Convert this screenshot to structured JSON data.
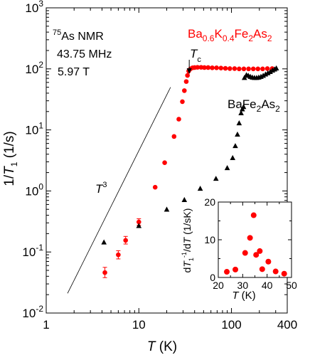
{
  "chart_data": [
    {
      "type": "scatter",
      "xscale": "log",
      "yscale": "log",
      "xlim": [
        1,
        400
      ],
      "ylim": [
        0.01,
        1000
      ],
      "xlabel": {
        "italic": "T",
        "rest": " (K)"
      },
      "ylabel": {
        "pre": "1/",
        "italic": "T",
        "sub": "1",
        "rest": " (1/s)"
      },
      "xticks": [
        {
          "v": 1,
          "label": "1"
        },
        {
          "v": 10,
          "label": "10"
        },
        {
          "v": 100,
          "label": "100"
        },
        {
          "v": 400,
          "label": "400"
        }
      ],
      "yticks": [
        {
          "v": 0.01,
          "base": "10",
          "exp": "-2"
        },
        {
          "v": 0.1,
          "base": "10",
          "exp": "-1"
        },
        {
          "v": 1,
          "base": "10",
          "exp": "0"
        },
        {
          "v": 10,
          "base": "10",
          "exp": "1"
        },
        {
          "v": 100,
          "base": "10",
          "exp": "2"
        },
        {
          "v": 1000,
          "base": "10",
          "exp": "3"
        }
      ],
      "info": {
        "nucleus_sup": "75",
        "nucleus_rest": "As NMR",
        "frequency": "43.75 MHz",
        "field": "5.97 T"
      },
      "series": [
        {
          "key": "ba_k",
          "name_parts": [
            [
              "Ba",
              ""
            ],
            [
              "0.6",
              "sub"
            ],
            [
              "K",
              ""
            ],
            [
              "0.4",
              "sub"
            ],
            [
              "Fe",
              ""
            ],
            [
              "2",
              "sub"
            ],
            [
              "As",
              ""
            ],
            [
              "2",
              "sub"
            ]
          ],
          "color": "#ff0000",
          "marker": "circle",
          "points": [
            [
              4.3,
              0.046
            ],
            [
              6.0,
              0.09
            ],
            [
              7.2,
              0.155
            ],
            [
              10.0,
              0.31
            ],
            [
              15.0,
              1.15
            ],
            [
              19.0,
              2.9
            ],
            [
              24.0,
              7.8
            ],
            [
              27.0,
              15.0
            ],
            [
              29.5,
              29.0
            ],
            [
              31.0,
              44.0
            ],
            [
              32.5,
              62.0
            ],
            [
              33.5,
              78.0
            ],
            [
              34.5,
              92.0
            ],
            [
              36.0,
              100.0
            ],
            [
              38.0,
              104.0
            ],
            [
              40.0,
              105.0
            ],
            [
              43.0,
              106.0
            ],
            [
              47.0,
              106.0
            ],
            [
              51.0,
              105.0
            ],
            [
              56.0,
              105.0
            ],
            [
              62.0,
              104.0
            ],
            [
              69.0,
              104.0
            ],
            [
              77.0,
              103.0
            ],
            [
              86.0,
              102.0
            ],
            [
              96.0,
              101.0
            ],
            [
              108.0,
              101.0
            ],
            [
              121.0,
              100.0
            ],
            [
              136.0,
              100.0
            ],
            [
              153.0,
              100.0
            ],
            [
              172.0,
              100.0
            ],
            [
              193.0,
              100.0
            ],
            [
              217.0,
              100.0
            ],
            [
              244.0,
              101.0
            ],
            [
              275.0,
              101.0
            ]
          ],
          "error_bars": [
            [
              4.3,
              0.038,
              0.056
            ],
            [
              6.0,
              0.077,
              0.105
            ],
            [
              7.2,
              0.135,
              0.18
            ],
            [
              10.0,
              0.275,
              0.35
            ]
          ]
        },
        {
          "key": "ba",
          "name_parts": [
            [
              "BaFe",
              ""
            ],
            [
              "2",
              "sub"
            ],
            [
              "As",
              ""
            ],
            [
              "2",
              "sub"
            ]
          ],
          "color": "#000000",
          "marker": "triangle",
          "points": [
            [
              4.2,
              0.145
            ],
            [
              10.0,
              0.27
            ],
            [
              20.0,
              0.5
            ],
            [
              31.0,
              0.72
            ],
            [
              46.0,
              1.1
            ],
            [
              68.0,
              1.6
            ],
            [
              90.0,
              2.4
            ],
            [
              103.0,
              3.5
            ],
            [
              110.0,
              5.5
            ],
            [
              116.0,
              8.5
            ],
            [
              121.0,
              13.0
            ],
            [
              127.0,
              19.0
            ],
            [
              131.0,
              22.0
            ],
            [
              135.0,
              24.0
            ],
            [
              138.0,
              72.0
            ],
            [
              145.0,
              80.0
            ],
            [
              152.0,
              78.0
            ],
            [
              160.0,
              75.0
            ],
            [
              168.0,
              73.0
            ],
            [
              177.0,
              72.0
            ],
            [
              187.0,
              72.0
            ],
            [
              197.0,
              73.0
            ],
            [
              208.0,
              75.0
            ],
            [
              220.0,
              78.0
            ],
            [
              233.0,
              82.0
            ],
            [
              247.0,
              86.0
            ],
            [
              262.0,
              90.0
            ],
            [
              277.0,
              95.0
            ],
            [
              292.0,
              99.0
            ],
            [
              305.0,
              103.0
            ]
          ]
        }
      ],
      "annotations": {
        "t3_label": "T",
        "t3_exp": "3",
        "t3_line": [
          [
            1.7,
            0.021
          ],
          [
            22.0,
            50.0
          ]
        ],
        "tc_label": "T",
        "tc_sub": "c",
        "tc_value": 35
      }
    },
    {
      "type": "scatter",
      "inset": true,
      "xlim": [
        20,
        50
      ],
      "ylim": [
        0,
        20
      ],
      "xlabel": {
        "italic": "T",
        "rest": " (K)"
      },
      "ylabel": {
        "pre": "d",
        "italic": "T",
        "sup": "-1",
        "mid1": "/d",
        "italic2": "T",
        "rest": " (1/sK)",
        "sub": "1"
      },
      "xticks": [
        "20",
        "30",
        "40",
        "50"
      ],
      "yticks": [
        "0",
        "10",
        "20"
      ],
      "color": "#ff0000",
      "points": [
        [
          23.5,
          1.5
        ],
        [
          27.0,
          2.1
        ],
        [
          31.0,
          6.5
        ],
        [
          33.0,
          10.5
        ],
        [
          34.5,
          16.5
        ],
        [
          35.5,
          6.0
        ],
        [
          37.0,
          7.0
        ],
        [
          38.0,
          2.2
        ],
        [
          40.5,
          4.2
        ],
        [
          43.5,
          1.6
        ],
        [
          47.0,
          1.0
        ]
      ]
    }
  ]
}
